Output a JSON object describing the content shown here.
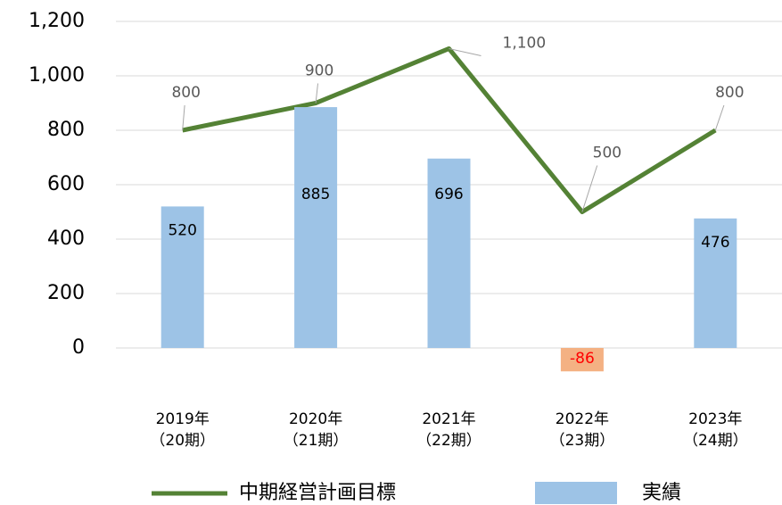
{
  "chart_data": {
    "type": "bar_line",
    "categories": [
      [
        "2019年",
        "（20期）"
      ],
      [
        "2020年",
        "（21期）"
      ],
      [
        "2021年",
        "（22期）"
      ],
      [
        "2022年",
        "（23期）"
      ],
      [
        "2023年",
        "（24期）"
      ]
    ],
    "series": [
      {
        "name": "中期経営計画目標",
        "type": "line",
        "color": "#548235",
        "values": [
          800,
          900,
          1100,
          500,
          800
        ],
        "value_labels": [
          "800",
          "900",
          "1,100",
          "500",
          "800"
        ]
      },
      {
        "name": "実績",
        "type": "bar",
        "color": "#9dc3e6",
        "negative_color": "#f4b183",
        "negative_label_color": "#ff0000",
        "values": [
          520,
          885,
          696,
          -86,
          476
        ]
      }
    ],
    "ylim": [
      -130,
      1200
    ],
    "yticks": [
      0,
      200,
      400,
      600,
      800,
      {
        "value": 1000,
        "label": "1,000"
      },
      {
        "value": 1200,
        "label": "1,200"
      }
    ],
    "grid": true
  }
}
